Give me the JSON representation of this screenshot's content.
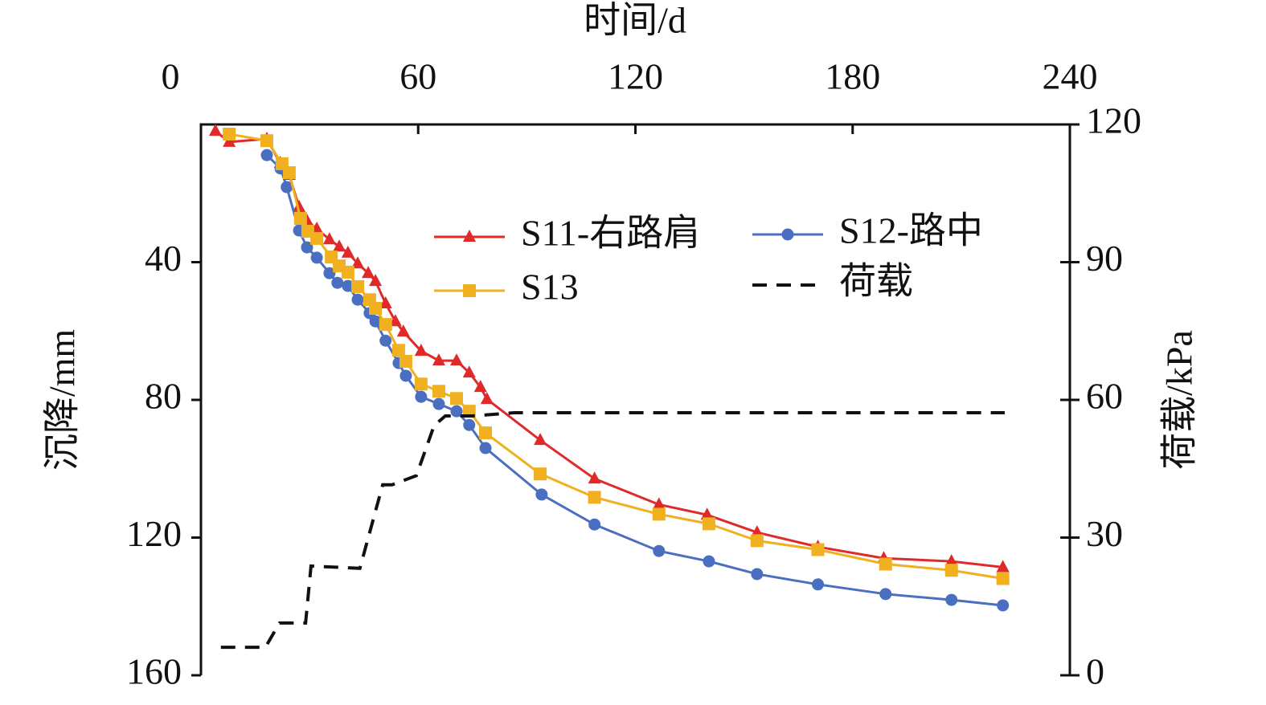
{
  "chart_data": {
    "type": "line",
    "xlabel": "时间/d",
    "ylabel": "沉降/mm",
    "y2label": "荷载/kPa",
    "xaxis_position": "top",
    "y_inverted": true,
    "xlim": [
      0,
      240
    ],
    "xticks": [
      0,
      60,
      120,
      180,
      240
    ],
    "ylim": [
      0,
      160
    ],
    "yticks": [
      40,
      80,
      120,
      160
    ],
    "y2lim": [
      0,
      120
    ],
    "y2ticks": [
      0,
      30,
      60,
      90,
      120
    ],
    "legend": "upper right",
    "series": [
      {
        "name": "S11-右路肩",
        "color": "#e02a2a",
        "marker": "triangle",
        "line_style": "solid",
        "x": [
          4.0,
          7.8,
          18.2,
          21.9,
          24.4,
          27.1,
          29.3,
          32.0,
          35.5,
          38.2,
          40.6,
          43.3,
          46.2,
          48.2,
          51.0,
          53.7,
          55.9,
          60.8,
          65.7,
          70.6,
          74.1,
          77.2,
          79.0,
          93.7,
          108.7,
          126.5,
          139.8,
          153.6,
          170.4,
          188.6,
          207.3,
          221.5
        ],
        "values": [
          1.9,
          5.1,
          4.2,
          11.2,
          14.7,
          24.0,
          28.0,
          30.3,
          33.4,
          35.5,
          37.3,
          40.4,
          43.2,
          45.5,
          52.0,
          57.2,
          60.2,
          65.8,
          68.6,
          68.6,
          72.1,
          76.3,
          79.8,
          91.7,
          102.9,
          110.4,
          113.4,
          118.5,
          122.7,
          126.0,
          126.9,
          128.6
        ]
      },
      {
        "name": "S12-路中",
        "color": "#4a6fc0",
        "marker": "circle",
        "line_style": "solid",
        "x": [
          18.2,
          22.0,
          23.7,
          27.1,
          29.3,
          32.0,
          35.5,
          37.7,
          40.6,
          43.3,
          46.6,
          48.2,
          51.0,
          54.6,
          56.6,
          60.8,
          65.7,
          70.6,
          74.1,
          78.6,
          94.1,
          108.7,
          126.5,
          140.3,
          153.6,
          170.4,
          189.1,
          207.3,
          221.5
        ],
        "values": [
          8.9,
          12.8,
          18.2,
          30.8,
          35.7,
          38.7,
          43.2,
          46.0,
          46.9,
          50.9,
          54.8,
          57.2,
          62.8,
          69.3,
          73.0,
          79.1,
          81.2,
          83.3,
          87.3,
          94.0,
          107.5,
          116.2,
          123.9,
          126.9,
          130.6,
          133.6,
          136.4,
          138.1,
          139.7
        ]
      },
      {
        "name": "S13",
        "color": "#f0b020",
        "marker": "square",
        "line_style": "solid",
        "x": [
          7.8,
          18.2,
          22.4,
          24.4,
          27.5,
          29.5,
          32.0,
          36.0,
          38.2,
          40.6,
          43.3,
          46.6,
          48.2,
          51.0,
          54.6,
          56.6,
          60.8,
          65.7,
          70.6,
          74.1,
          78.6,
          93.7,
          108.7,
          126.5,
          140.3,
          153.6,
          170.4,
          189.1,
          207.3,
          221.5
        ],
        "values": [
          2.8,
          4.7,
          11.4,
          14.0,
          27.3,
          31.0,
          33.1,
          38.5,
          41.1,
          42.9,
          47.1,
          50.9,
          53.4,
          58.1,
          65.6,
          68.8,
          75.4,
          77.5,
          79.6,
          83.3,
          89.6,
          101.5,
          108.3,
          113.2,
          116.0,
          120.9,
          123.5,
          127.7,
          129.5,
          131.9
        ]
      },
      {
        "name": "荷载",
        "color": "#111111",
        "marker": "none",
        "line_style": "dashed",
        "axis": "y2",
        "x": [
          5.5,
          17.8,
          21.7,
          28.9,
          30.4,
          43.9,
          50.2,
          52.8,
          59.5,
          64.4,
          67.5,
          75.0,
          86.6,
          222.0
        ],
        "values": [
          6.1,
          6.1,
          11.4,
          11.4,
          23.8,
          23.3,
          41.5,
          41.5,
          43.5,
          54.4,
          56.5,
          56.5,
          57.2,
          57.2
        ]
      }
    ]
  }
}
